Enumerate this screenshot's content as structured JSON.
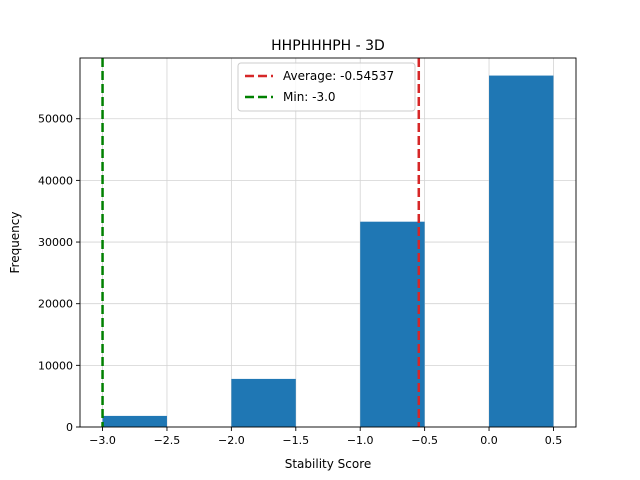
{
  "chart_data": {
    "type": "bar",
    "title": "HHPHHHPH - 3D",
    "xlabel": "Stability Score",
    "ylabel": "Frequency",
    "xlim": [
      -3.175,
      0.675
    ],
    "ylim": [
      0,
      59850
    ],
    "xticks": [
      -3.0,
      -2.5,
      -2.0,
      -1.5,
      -1.0,
      -0.5,
      0.0,
      0.5
    ],
    "xtick_labels": [
      "−3.0",
      "−2.5",
      "−2.0",
      "−1.5",
      "−1.0",
      "−0.5",
      "0.0",
      "0.5"
    ],
    "yticks": [
      0,
      10000,
      20000,
      30000,
      40000,
      50000
    ],
    "ytick_labels": [
      "0",
      "10000",
      "20000",
      "30000",
      "40000",
      "50000"
    ],
    "grid": true,
    "bins": [
      {
        "x0": -3.0,
        "x1": -2.5,
        "count": 1800
      },
      {
        "x0": -2.5,
        "x1": -2.0,
        "count": 0
      },
      {
        "x0": -2.0,
        "x1": -1.5,
        "count": 7800
      },
      {
        "x0": -1.5,
        "x1": -1.0,
        "count": 0
      },
      {
        "x0": -1.0,
        "x1": -0.5,
        "count": 33300
      },
      {
        "x0": -0.5,
        "x1": 0.0,
        "count": 0
      },
      {
        "x0": 0.0,
        "x1": 0.5,
        "count": 57000
      }
    ],
    "bar_color": "#1f77b4",
    "vlines": [
      {
        "label": "Average: -0.54537",
        "x": -0.54537,
        "color": "#d62728"
      },
      {
        "label": "Min: -3.0",
        "x": -3.0,
        "color": "#008000"
      }
    ],
    "legend_position": "upper center"
  }
}
